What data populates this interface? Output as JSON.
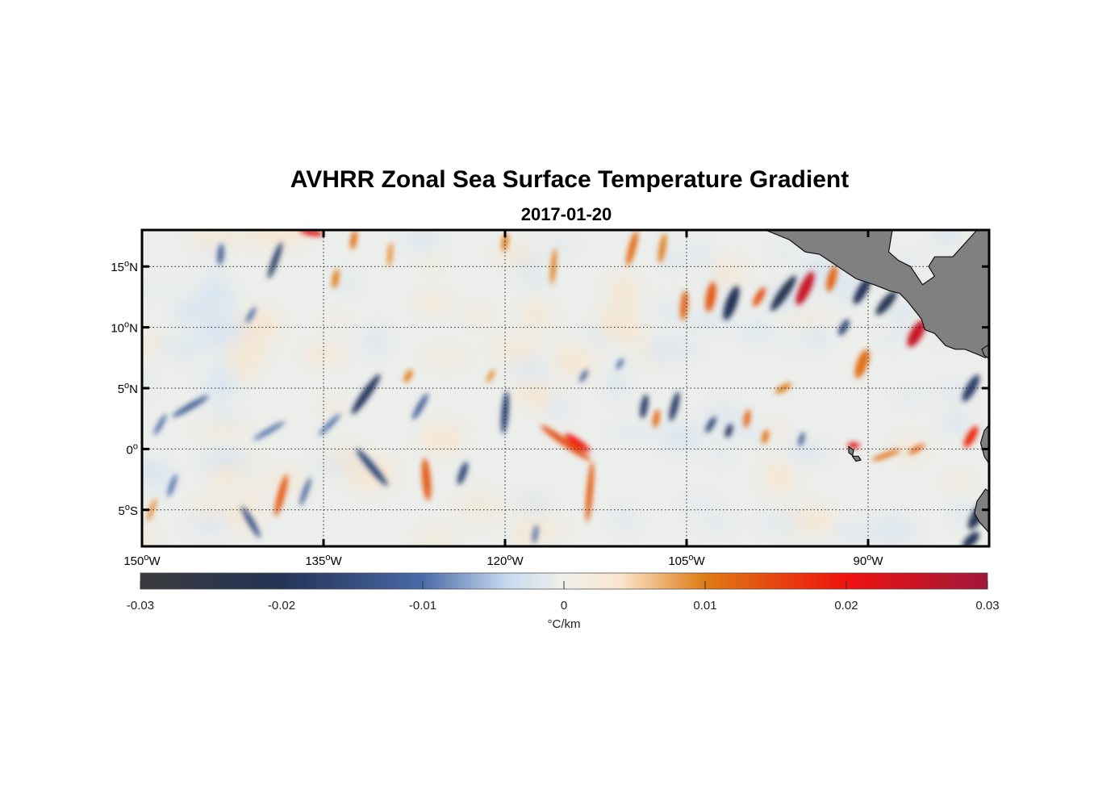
{
  "chart_data": {
    "type": "heatmap",
    "title": "AVHRR Zonal Sea Surface Temperature Gradient",
    "subtitle": "2017-01-20",
    "variable": "zonal SST gradient",
    "units": "°C/km",
    "lon_range": [
      -150,
      -80
    ],
    "lat_range": [
      -8,
      18
    ],
    "grid": "dotted",
    "x_ticks": [
      {
        "value": -150,
        "num": "150",
        "sup": "o",
        "hemi": "W"
      },
      {
        "value": -135,
        "num": "135",
        "sup": "o",
        "hemi": "W"
      },
      {
        "value": -120,
        "num": "120",
        "sup": "o",
        "hemi": "W"
      },
      {
        "value": -105,
        "num": "105",
        "sup": "o",
        "hemi": "W"
      },
      {
        "value": -90,
        "num": "90",
        "sup": "o",
        "hemi": "W"
      }
    ],
    "y_ticks": [
      {
        "value": 15,
        "num": "15",
        "sup": "o",
        "hemi": "N"
      },
      {
        "value": 10,
        "num": "10",
        "sup": "o",
        "hemi": "N"
      },
      {
        "value": 5,
        "num": "5",
        "sup": "o",
        "hemi": "N"
      },
      {
        "value": 0,
        "num": "0",
        "sup": "o",
        "hemi": ""
      },
      {
        "value": -5,
        "num": "5",
        "sup": "o",
        "hemi": "S"
      }
    ],
    "colorbar": {
      "label": "°C/km",
      "range": [
        -0.03,
        0.03
      ],
      "ticks": [
        {
          "value": -0.03,
          "label": "-0.03"
        },
        {
          "value": -0.02,
          "label": "-0.02"
        },
        {
          "value": -0.01,
          "label": "-0.01"
        },
        {
          "value": 0,
          "label": "0"
        },
        {
          "value": 0.01,
          "label": "0.01"
        },
        {
          "value": 0.02,
          "label": "0.02"
        },
        {
          "value": 0.03,
          "label": "0.03"
        }
      ],
      "stops": [
        {
          "value": -0.03,
          "color": "#3b3b3d"
        },
        {
          "value": -0.02,
          "color": "#223356"
        },
        {
          "value": -0.01,
          "color": "#4a6aa8"
        },
        {
          "value": -0.004,
          "color": "#c6dbf0"
        },
        {
          "value": 0,
          "color": "#eef0ec"
        },
        {
          "value": 0.004,
          "color": "#fbe6cc"
        },
        {
          "value": 0.01,
          "color": "#de7a14"
        },
        {
          "value": 0.02,
          "color": "#f0120f"
        },
        {
          "value": 0.03,
          "color": "#a0173a"
        }
      ]
    },
    "features": [
      {
        "name": "front-139w-15n",
        "lon": -139.0,
        "lat": 15.5,
        "len": 3.2,
        "wid": 0.5,
        "angle": -70,
        "value": -0.018
      },
      {
        "name": "front-136w-18n",
        "lon": -136.0,
        "lat": 17.8,
        "len": 2.0,
        "wid": 0.5,
        "angle": 10,
        "value": 0.022
      },
      {
        "name": "front-133w-17n",
        "lon": -132.5,
        "lat": 17.2,
        "len": 1.6,
        "wid": 0.5,
        "angle": -80,
        "value": 0.011
      },
      {
        "name": "front-134w-14n",
        "lon": -134.0,
        "lat": 14.0,
        "len": 1.6,
        "wid": 0.5,
        "angle": -80,
        "value": 0.01
      },
      {
        "name": "front-130w-16n",
        "lon": -129.5,
        "lat": 16.0,
        "len": 2.0,
        "wid": 0.4,
        "angle": -85,
        "value": 0.009
      },
      {
        "name": "front-120w-17n",
        "lon": -120.0,
        "lat": 17.0,
        "len": 1.5,
        "wid": 0.5,
        "angle": -80,
        "value": 0.01
      },
      {
        "name": "front-116w-15n",
        "lon": -116.0,
        "lat": 15.0,
        "len": 3.0,
        "wid": 0.4,
        "angle": -85,
        "value": 0.01
      },
      {
        "name": "front-109w-16n",
        "lon": -109.5,
        "lat": 16.5,
        "len": 3.0,
        "wid": 0.6,
        "angle": -75,
        "value": 0.011
      },
      {
        "name": "front-107w-16n",
        "lon": -107.0,
        "lat": 16.5,
        "len": 2.5,
        "wid": 0.5,
        "angle": -80,
        "value": 0.01
      },
      {
        "name": "front-105w-12n",
        "lon": -105.2,
        "lat": 11.8,
        "len": 2.5,
        "wid": 0.6,
        "angle": -85,
        "value": 0.012
      },
      {
        "name": "front-103w-13n",
        "lon": -103.0,
        "lat": 12.5,
        "len": 2.5,
        "wid": 0.8,
        "angle": -80,
        "value": 0.013
      },
      {
        "name": "front-101w-12n",
        "lon": -101.3,
        "lat": 12.0,
        "len": 3.0,
        "wid": 0.9,
        "angle": -70,
        "value": -0.02
      },
      {
        "name": "front-99w-12n",
        "lon": -99.0,
        "lat": 12.5,
        "len": 1.8,
        "wid": 0.6,
        "angle": -60,
        "value": 0.014
      },
      {
        "name": "front-97w-13n",
        "lon": -97.0,
        "lat": 12.8,
        "len": 3.5,
        "wid": 0.8,
        "angle": -55,
        "value": -0.022
      },
      {
        "name": "front-95w-14n",
        "lon": -95.2,
        "lat": 13.2,
        "len": 3.0,
        "wid": 0.9,
        "angle": -65,
        "value": 0.025
      },
      {
        "name": "front-93w-14n",
        "lon": -93.0,
        "lat": 14.0,
        "len": 2.2,
        "wid": 0.7,
        "angle": -75,
        "value": 0.012
      },
      {
        "name": "front-91w-13n",
        "lon": -90.5,
        "lat": 13.0,
        "len": 2.5,
        "wid": 0.8,
        "angle": -60,
        "value": -0.02
      },
      {
        "name": "front-89w-12n",
        "lon": -88.5,
        "lat": 12.0,
        "len": 2.5,
        "wid": 0.8,
        "angle": -50,
        "value": -0.022
      },
      {
        "name": "front-86w-10n",
        "lon": -86.0,
        "lat": 9.5,
        "len": 2.5,
        "wid": 1.0,
        "angle": -60,
        "value": 0.025
      },
      {
        "name": "front-91w-7n",
        "lon": -90.5,
        "lat": 7.0,
        "len": 2.5,
        "wid": 0.9,
        "angle": -70,
        "value": 0.011
      },
      {
        "name": "front-92w-10n",
        "lon": -92.0,
        "lat": 10.0,
        "len": 1.5,
        "wid": 0.6,
        "angle": -60,
        "value": -0.016
      },
      {
        "name": "front-82w-5n",
        "lon": -81.5,
        "lat": 5.0,
        "len": 2.5,
        "wid": 0.8,
        "angle": -60,
        "value": -0.018
      },
      {
        "name": "front-82w-1n",
        "lon": -81.5,
        "lat": 1.0,
        "len": 2.0,
        "wid": 0.7,
        "angle": -60,
        "value": 0.018
      },
      {
        "name": "front-81w-5s",
        "lon": -81.0,
        "lat": -5.5,
        "len": 2.5,
        "wid": 0.9,
        "angle": -60,
        "value": -0.022
      },
      {
        "name": "front-82w-8s",
        "lon": -81.5,
        "lat": -7.5,
        "len": 1.8,
        "wid": 0.8,
        "angle": -45,
        "value": -0.02
      },
      {
        "name": "front-131w-5n",
        "lon": -131.5,
        "lat": 4.5,
        "len": 4.0,
        "wid": 0.7,
        "angle": -55,
        "value": -0.019
      },
      {
        "name": "front-127w-4n",
        "lon": -127.0,
        "lat": 3.5,
        "len": 2.5,
        "wid": 0.5,
        "angle": -60,
        "value": -0.012
      },
      {
        "name": "front-134w-2n",
        "lon": -134.5,
        "lat": 2.0,
        "len": 2.5,
        "wid": 0.4,
        "angle": -45,
        "value": -0.01
      },
      {
        "name": "front-139w-2n",
        "lon": -139.5,
        "lat": 1.5,
        "len": 3.0,
        "wid": 0.4,
        "angle": -30,
        "value": -0.01
      },
      {
        "name": "front-146w-3n",
        "lon": -146.0,
        "lat": 3.5,
        "len": 3.5,
        "wid": 0.5,
        "angle": -30,
        "value": -0.012
      },
      {
        "name": "front-148w-2n",
        "lon": -148.5,
        "lat": 2.0,
        "len": 2.0,
        "wid": 0.4,
        "angle": -60,
        "value": -0.01
      },
      {
        "name": "front-120w-3n",
        "lon": -120.0,
        "lat": 3.0,
        "len": 3.5,
        "wid": 0.6,
        "angle": -85,
        "value": -0.016
      },
      {
        "name": "front-115w-0n",
        "lon": -115.0,
        "lat": 0.5,
        "len": 5.0,
        "wid": 0.6,
        "angle": 35,
        "value": 0.014
      },
      {
        "name": "front-114w-1n",
        "lon": -114.0,
        "lat": 0.5,
        "len": 2.5,
        "wid": 0.6,
        "angle": 35,
        "value": 0.02
      },
      {
        "name": "front-113w-4s",
        "lon": -113.0,
        "lat": -3.5,
        "len": 5.0,
        "wid": 0.5,
        "angle": 95,
        "value": 0.013
      },
      {
        "name": "front-127w-3s",
        "lon": -126.5,
        "lat": -2.5,
        "len": 3.5,
        "wid": 0.7,
        "angle": -95,
        "value": 0.013
      },
      {
        "name": "front-131w-2s",
        "lon": -131.0,
        "lat": -1.5,
        "len": 4.0,
        "wid": 0.6,
        "angle": 50,
        "value": -0.016
      },
      {
        "name": "front-123w-2s",
        "lon": -123.5,
        "lat": -2.0,
        "len": 2.0,
        "wid": 0.6,
        "angle": -70,
        "value": -0.016
      },
      {
        "name": "front-138w-4s",
        "lon": -138.5,
        "lat": -3.8,
        "len": 3.5,
        "wid": 0.6,
        "angle": -75,
        "value": 0.013
      },
      {
        "name": "front-141w-6s",
        "lon": -141.0,
        "lat": -6.0,
        "len": 3.0,
        "wid": 0.5,
        "angle": 60,
        "value": -0.014
      },
      {
        "name": "front-136w-4s",
        "lon": -136.5,
        "lat": -3.5,
        "len": 2.5,
        "wid": 0.4,
        "angle": -70,
        "value": -0.012
      },
      {
        "name": "front-147w-3s",
        "lon": -147.5,
        "lat": -3.0,
        "len": 2.0,
        "wid": 0.4,
        "angle": -70,
        "value": -0.01
      },
      {
        "name": "front-150w-5s",
        "lon": -149.2,
        "lat": -5.0,
        "len": 2.0,
        "wid": 0.4,
        "angle": -70,
        "value": 0.009
      },
      {
        "name": "front-118w-8s",
        "lon": -117.5,
        "lat": -7.0,
        "len": 1.5,
        "wid": 0.4,
        "angle": -80,
        "value": -0.01
      },
      {
        "name": "front-108w-3n",
        "lon": -108.5,
        "lat": 3.5,
        "len": 2.0,
        "wid": 0.6,
        "angle": -80,
        "value": -0.018
      },
      {
        "name": "front-107w-3n",
        "lon": -107.5,
        "lat": 2.5,
        "len": 1.5,
        "wid": 0.5,
        "angle": -80,
        "value": 0.012
      },
      {
        "name": "front-106w-4n",
        "lon": -106.0,
        "lat": 3.5,
        "len": 2.5,
        "wid": 0.6,
        "angle": -75,
        "value": -0.018
      },
      {
        "name": "front-103w-2n",
        "lon": -103.0,
        "lat": 2.0,
        "len": 1.5,
        "wid": 0.5,
        "angle": -60,
        "value": -0.016
      },
      {
        "name": "front-101w-2n",
        "lon": -101.5,
        "lat": 1.5,
        "len": 1.2,
        "wid": 0.5,
        "angle": -70,
        "value": -0.02
      },
      {
        "name": "front-100w-2n",
        "lon": -100.0,
        "lat": 2.5,
        "len": 1.5,
        "wid": 0.5,
        "angle": -80,
        "value": 0.012
      },
      {
        "name": "front-98w-1n",
        "lon": -98.5,
        "lat": 1.0,
        "len": 1.2,
        "wid": 0.5,
        "angle": -75,
        "value": 0.011
      },
      {
        "name": "front-95w-1n",
        "lon": -95.5,
        "lat": 0.8,
        "len": 1.2,
        "wid": 0.4,
        "angle": -75,
        "value": -0.014
      },
      {
        "name": "front-91w-0n",
        "lon": -91.2,
        "lat": 0.3,
        "len": 1.0,
        "wid": 0.5,
        "angle": 0,
        "value": 0.022
      },
      {
        "name": "front-89w-0n",
        "lon": -88.5,
        "lat": -0.5,
        "len": 2.5,
        "wid": 0.4,
        "angle": -20,
        "value": 0.011
      },
      {
        "name": "front-86w-0n",
        "lon": -86.0,
        "lat": 0.0,
        "len": 1.5,
        "wid": 0.4,
        "angle": -30,
        "value": 0.013
      },
      {
        "name": "front-97w-5n",
        "lon": -97.0,
        "lat": 5.0,
        "len": 1.5,
        "wid": 0.5,
        "angle": -30,
        "value": 0.01
      },
      {
        "name": "front-144w-16n",
        "lon": -143.5,
        "lat": 16.0,
        "len": 1.8,
        "wid": 0.5,
        "angle": -85,
        "value": -0.012
      },
      {
        "name": "front-141w-11n",
        "lon": -141.0,
        "lat": 11.0,
        "len": 1.5,
        "wid": 0.4,
        "angle": -60,
        "value": -0.01
      },
      {
        "name": "front-128w-6n",
        "lon": -128.0,
        "lat": 6.0,
        "len": 1.2,
        "wid": 0.5,
        "angle": -60,
        "value": 0.01
      },
      {
        "name": "front-121w-6n",
        "lon": -121.2,
        "lat": 6.0,
        "len": 1.2,
        "wid": 0.4,
        "angle": -60,
        "value": 0.009
      },
      {
        "name": "front-113w-6n",
        "lon": -113.5,
        "lat": 6.0,
        "len": 1.2,
        "wid": 0.4,
        "angle": -60,
        "value": -0.012
      },
      {
        "name": "front-110w-7n",
        "lon": -110.5,
        "lat": 7.0,
        "len": 1.0,
        "wid": 0.4,
        "angle": -60,
        "value": -0.01
      }
    ],
    "land": [
      {
        "name": "central-america-land",
        "points": [
          [
            -98.5,
            18
          ],
          [
            -96.5,
            17.2
          ],
          [
            -95.2,
            16.2
          ],
          [
            -94.0,
            16.0
          ],
          [
            -92.5,
            15.0
          ],
          [
            -91.0,
            14.0
          ],
          [
            -89.5,
            13.5
          ],
          [
            -88.2,
            13.0
          ],
          [
            -87.4,
            12.8
          ],
          [
            -86.8,
            12.2
          ],
          [
            -86.0,
            11.2
          ],
          [
            -85.6,
            10.7
          ],
          [
            -85.3,
            9.8
          ],
          [
            -84.5,
            9.5
          ],
          [
            -83.6,
            8.5
          ],
          [
            -82.8,
            8.2
          ],
          [
            -82.0,
            8.2
          ],
          [
            -81.0,
            7.8
          ],
          [
            -80.3,
            7.5
          ],
          [
            -80.0,
            8.0
          ],
          [
            -80.0,
            18.0
          ],
          [
            -81.0,
            18.0
          ],
          [
            -83.0,
            15.8
          ],
          [
            -84.5,
            15.8
          ],
          [
            -85.0,
            15.0
          ],
          [
            -84.5,
            14.2
          ],
          [
            -85.5,
            13.5
          ],
          [
            -86.5,
            15.0
          ],
          [
            -87.5,
            15.5
          ],
          [
            -88.3,
            16.2
          ],
          [
            -88.0,
            18.0
          ]
        ]
      },
      {
        "name": "panama-tip-land",
        "points": [
          [
            -80.0,
            8.6
          ],
          [
            -80.6,
            8.2
          ],
          [
            -80.4,
            7.7
          ],
          [
            -80.0,
            7.4
          ]
        ]
      },
      {
        "name": "colombia-land",
        "points": [
          [
            -80.0,
            2.0
          ],
          [
            -80.4,
            1.5
          ],
          [
            -80.7,
            0.5
          ],
          [
            -80.4,
            -0.6
          ],
          [
            -80.0,
            -1.2
          ],
          [
            -80.0,
            2.0
          ]
        ]
      },
      {
        "name": "peru-land",
        "points": [
          [
            -80.0,
            -3.5
          ],
          [
            -80.3,
            -3.3
          ],
          [
            -81.0,
            -4.3
          ],
          [
            -81.2,
            -5.3
          ],
          [
            -80.8,
            -6.0
          ],
          [
            -79.9,
            -7.0
          ],
          [
            -80.0,
            -8.0
          ]
        ]
      },
      {
        "name": "galapagos-land",
        "points": [
          [
            -91.6,
            0.2
          ],
          [
            -91.2,
            -0.1
          ],
          [
            -91.3,
            -0.6
          ],
          [
            -91.0,
            -1.0
          ],
          [
            -90.6,
            -0.9
          ],
          [
            -90.8,
            -0.6
          ],
          [
            -91.2,
            -0.6
          ],
          [
            -91.6,
            -0.3
          ]
        ]
      }
    ]
  }
}
